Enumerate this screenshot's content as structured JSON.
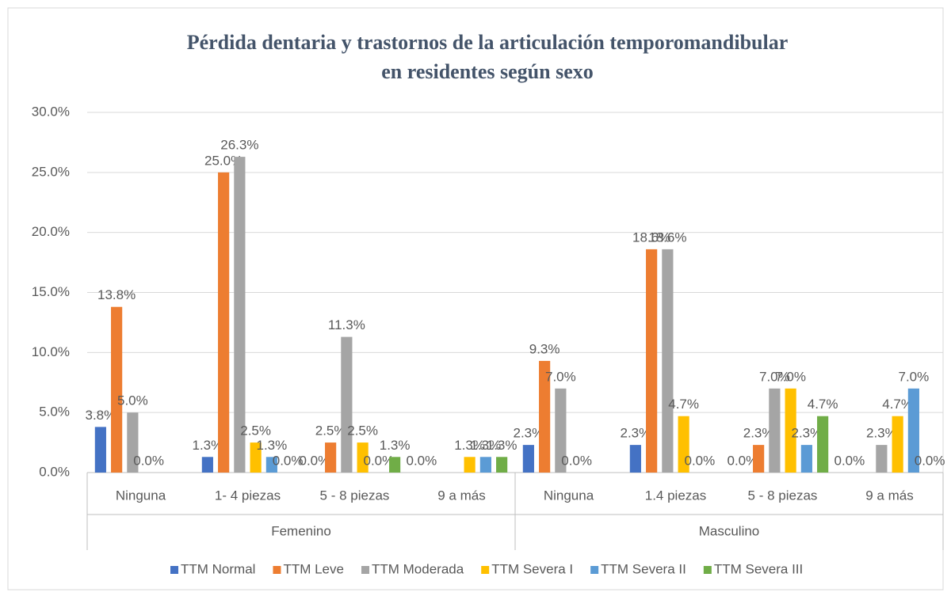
{
  "chart_data": {
    "type": "bar",
    "title": [
      "Pérdida dentaria y trastornos de la articulación temporomandibular",
      "en residentes según sexo"
    ],
    "category_groups": [
      "Femenino",
      "Masculino"
    ],
    "categories": [
      "Ninguna",
      "1- 4 piezas",
      "5 - 8 piezas",
      "9 a más",
      "Ninguna",
      "1.4 piezas",
      "5 - 8 piezas",
      "9 a más"
    ],
    "series": [
      {
        "name": "TTM Normal",
        "color": "#4472c4",
        "values": [
          3.8,
          1.3,
          0.0,
          0.0,
          2.3,
          2.3,
          0.0,
          0.0
        ],
        "value_labels": [
          "3.8%",
          "1.3%",
          "0.0%",
          "0.0%",
          "2.3%",
          "2.3%",
          "0.0%",
          "0.0%"
        ]
      },
      {
        "name": "TTM Leve",
        "color": "#ed7d31",
        "values": [
          13.8,
          25.0,
          2.5,
          null,
          9.3,
          18.6,
          2.3,
          null
        ],
        "value_labels": [
          "13.8%",
          "25.0%",
          "2.5%",
          null,
          "9.3%",
          "18.6%",
          "2.3%",
          null
        ]
      },
      {
        "name": "TTM Moderada",
        "color": "#a5a5a5",
        "values": [
          5.0,
          26.3,
          11.3,
          null,
          7.0,
          18.6,
          7.0,
          2.3
        ],
        "value_labels": [
          "5.0%",
          "26.3%",
          "11.3%",
          null,
          "7.0%",
          "18.6%",
          "7.0%",
          "2.3%"
        ]
      },
      {
        "name": "TTM Severa I",
        "color": "#ffc000",
        "values": [
          0.0,
          2.5,
          2.5,
          1.3,
          0.0,
          4.7,
          7.0,
          4.7
        ],
        "value_labels": [
          "0.0%",
          "2.5%",
          "2.5%",
          "1.3%",
          "0.0%",
          "4.7%",
          "7.0%",
          "4.7%"
        ]
      },
      {
        "name": "TTM Severa II",
        "color": "#5b9bd5",
        "values": [
          null,
          1.3,
          0.0,
          1.3,
          null,
          0.0,
          2.3,
          7.0
        ],
        "value_labels": [
          null,
          "1.3%",
          "0.0%",
          "1.3%",
          null,
          "0.0%",
          "2.3%",
          "7.0%"
        ]
      },
      {
        "name": "TTM Severa III",
        "color": "#70ad47",
        "values": [
          null,
          0.0,
          1.3,
          1.3,
          null,
          null,
          4.7,
          0.0
        ],
        "value_labels": [
          null,
          "0.0%",
          "1.3%",
          "1.3%",
          null,
          null,
          "4.7%",
          "0.0%"
        ]
      }
    ],
    "ylim": [
      0,
      30
    ],
    "yticks": [
      {
        "value": 0,
        "label": "0.0%"
      },
      {
        "value": 5,
        "label": "5.0%"
      },
      {
        "value": 10,
        "label": "10.0%"
      },
      {
        "value": 15,
        "label": "15.0%"
      },
      {
        "value": 20,
        "label": "20.0%"
      },
      {
        "value": 25,
        "label": "25.0%"
      },
      {
        "value": 30,
        "label": "30.0%"
      }
    ],
    "grid": true,
    "legend": "bottom"
  }
}
